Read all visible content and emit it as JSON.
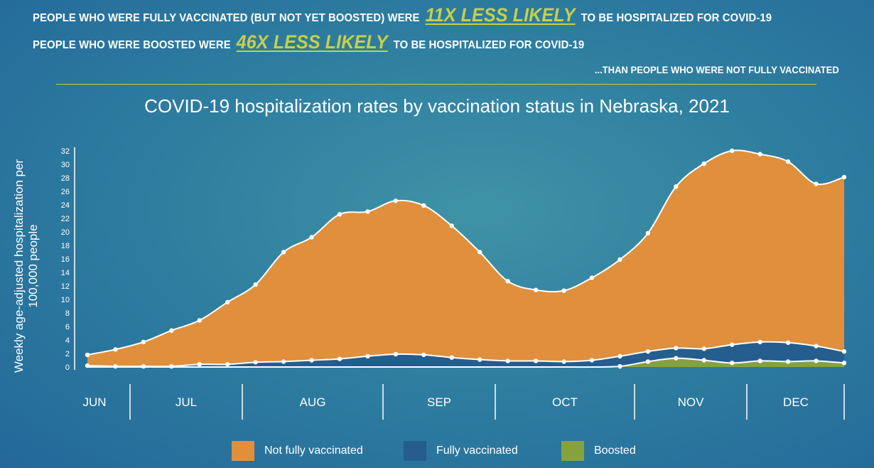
{
  "headline": {
    "line1_pre": "PEOPLE WHO WERE FULLY VACCINATED (BUT NOT YET BOOSTED) WERE",
    "line1_em": "11X LESS LIKELY",
    "line1_post": "TO BE HOSPITALIZED FOR COVID-19",
    "line2_pre": "PEOPLE WHO WERE BOOSTED WERE",
    "line2_em": "46X LESS LIKELY",
    "line2_post": "TO BE HOSPITALIZED FOR COVID-19",
    "than": "...THAN PEOPLE WHO WERE NOT FULLY VACCINATED"
  },
  "colors": {
    "not_fully": "#e08f3c",
    "fully": "#255d8e",
    "boosted": "#86a23c",
    "accent": "#c7cf4a"
  },
  "chart_data": {
    "type": "area",
    "title": "COVID-19 hospitalization rates by vaccination status in Nebraska, 2021",
    "ylabel": "Weekly age-adjusted hospitalization per 100,000 people",
    "xlabel": "",
    "ylim": [
      0,
      32
    ],
    "yticks": [
      0,
      2,
      4,
      6,
      8,
      10,
      12,
      14,
      16,
      18,
      20,
      22,
      24,
      26,
      28,
      30,
      32
    ],
    "months": [
      "JUN",
      "JUL",
      "AUG",
      "SEP",
      "OCT",
      "NOV",
      "DEC"
    ],
    "grid": false,
    "legend_position": "bottom",
    "series": [
      {
        "name": "Not fully vaccinated",
        "values": [
          1.8,
          2.6,
          3.7,
          5.4,
          6.9,
          9.6,
          12.2,
          17.0,
          19.2,
          22.6,
          23.0,
          24.6,
          23.9,
          20.9,
          17.0,
          12.7,
          11.4,
          11.3,
          13.2,
          15.9,
          19.8,
          26.7,
          30.1,
          32.0,
          31.5,
          30.4,
          27.1,
          28.1
        ]
      },
      {
        "name": "Fully vaccinated",
        "values": [
          0.2,
          0.1,
          0.1,
          0.1,
          0.4,
          0.4,
          0.7,
          0.8,
          1.0,
          1.2,
          1.6,
          1.9,
          1.8,
          1.4,
          1.1,
          0.9,
          0.9,
          0.8,
          1.0,
          1.6,
          2.3,
          2.8,
          2.7,
          3.3,
          3.7,
          3.6,
          3.1,
          2.3
        ]
      },
      {
        "name": "Boosted",
        "values": [
          0,
          0,
          0,
          0,
          0,
          0,
          0,
          0,
          0,
          0,
          0,
          0,
          0,
          0,
          0,
          0,
          0,
          0,
          0,
          0.1,
          0.8,
          1.3,
          1.0,
          0.6,
          0.9,
          0.8,
          0.9,
          0.6
        ]
      }
    ]
  }
}
